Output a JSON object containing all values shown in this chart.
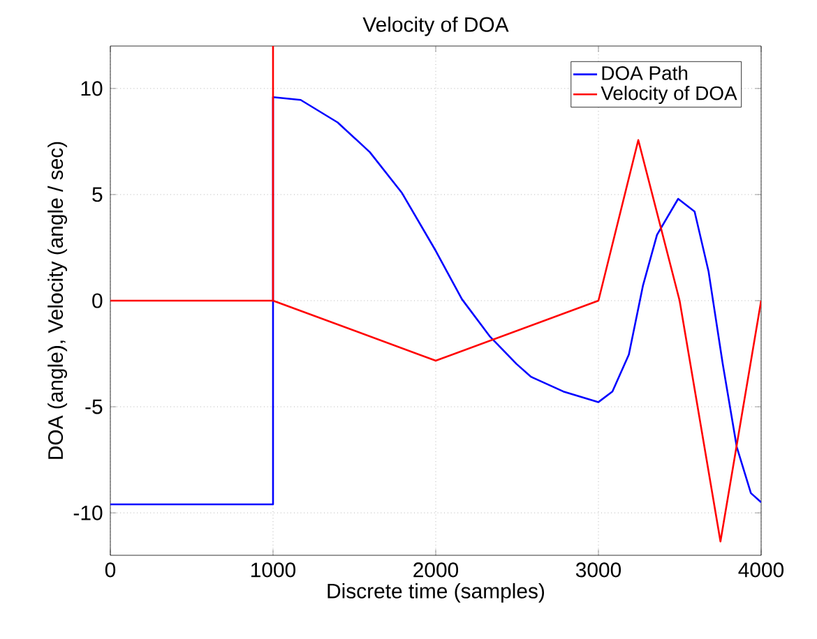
{
  "chart_data": {
    "type": "line",
    "title": "Velocity of DOA",
    "xlabel": "Discrete time (samples)",
    "ylabel": "DOA (angle), Velocity (angle / sec)",
    "xlim": [
      0,
      4000
    ],
    "ylim": [
      -12,
      12
    ],
    "xticks": [
      0,
      1000,
      2000,
      3000,
      4000
    ],
    "yticks": [
      -10,
      -5,
      0,
      5,
      10
    ],
    "grid": true,
    "legend": "top right",
    "marker": "none",
    "line_style": "solid",
    "series": [
      {
        "name": "DOA Path",
        "color": "#0000ff",
        "x": [
          0,
          1000,
          1000,
          1170,
          1397,
          1595,
          1793,
          2000,
          2161,
          2331,
          2496,
          2586,
          2784,
          3000,
          3086,
          3187,
          3274,
          3360,
          3490,
          3591,
          3677,
          3764,
          3850,
          3937,
          4000
        ],
        "values": [
          -9.6,
          -9.6,
          9.59,
          9.46,
          8.4,
          7.0,
          5.07,
          2.35,
          0.07,
          -1.67,
          -2.98,
          -3.59,
          -4.28,
          -4.78,
          -4.28,
          -2.54,
          0.72,
          3.1,
          4.8,
          4.2,
          1.37,
          -2.98,
          -6.89,
          -9.07,
          -9.5
        ]
      },
      {
        "name": "Velocity of DOA",
        "color": "#ff0000",
        "x": [
          0,
          1000,
          1000,
          1000,
          2000,
          3000,
          3245,
          3499,
          3750,
          4000
        ],
        "values": [
          0,
          0,
          12,
          0,
          -2.83,
          0,
          7.57,
          0,
          -11.35,
          0
        ]
      }
    ]
  }
}
